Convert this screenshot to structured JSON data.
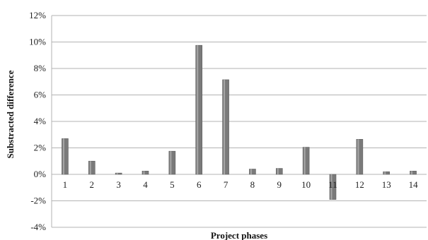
{
  "chart_data": {
    "type": "bar",
    "title": "",
    "xlabel": "Project phases",
    "ylabel": "Substracted difference",
    "categories": [
      "1",
      "2",
      "3",
      "4",
      "5",
      "6",
      "7",
      "8",
      "9",
      "10",
      "11",
      "12",
      "13",
      "14"
    ],
    "values": [
      2.7,
      1.0,
      0.1,
      0.25,
      1.75,
      9.75,
      7.15,
      0.4,
      0.45,
      2.05,
      -1.9,
      2.65,
      0.2,
      0.25
    ],
    "ylim": [
      -4,
      12
    ],
    "y_ticks": [
      -4,
      -2,
      0,
      2,
      4,
      6,
      8,
      10,
      12
    ],
    "y_tick_labels": [
      "-4%",
      "-2%",
      "0%",
      "2%",
      "4%",
      "6%",
      "8%",
      "10%",
      "12%"
    ],
    "grid": true,
    "bar_color": "#7a7a7a"
  }
}
